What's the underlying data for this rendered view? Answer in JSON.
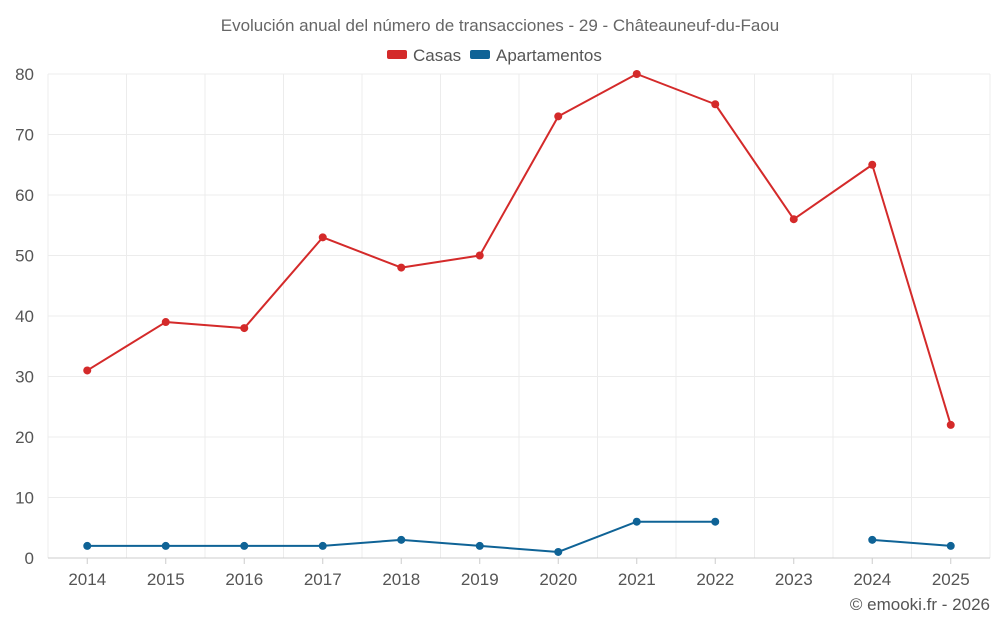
{
  "chart_data": {
    "type": "line",
    "title": "Evolución anual del número de transacciones - 29 - Châteauneuf-du-Faou",
    "xlabel": "",
    "ylabel": "",
    "categories": [
      "2014",
      "2015",
      "2016",
      "2017",
      "2018",
      "2019",
      "2020",
      "2021",
      "2022",
      "2023",
      "2024",
      "2025"
    ],
    "ylim": [
      0,
      80
    ],
    "yticks": [
      0,
      10,
      20,
      30,
      40,
      50,
      60,
      70,
      80
    ],
    "grid": true,
    "legend_position": "top-center",
    "series": [
      {
        "name": "Casas",
        "color": "#d42a2a",
        "values": [
          31,
          39,
          38,
          53,
          48,
          50,
          73,
          80,
          75,
          56,
          65,
          22
        ]
      },
      {
        "name": "Apartamentos",
        "color": "#0f6396",
        "values": [
          2,
          2,
          2,
          2,
          3,
          2,
          1,
          6,
          6,
          null,
          3,
          2
        ]
      }
    ],
    "credit": "© emooki.fr - 2026"
  }
}
